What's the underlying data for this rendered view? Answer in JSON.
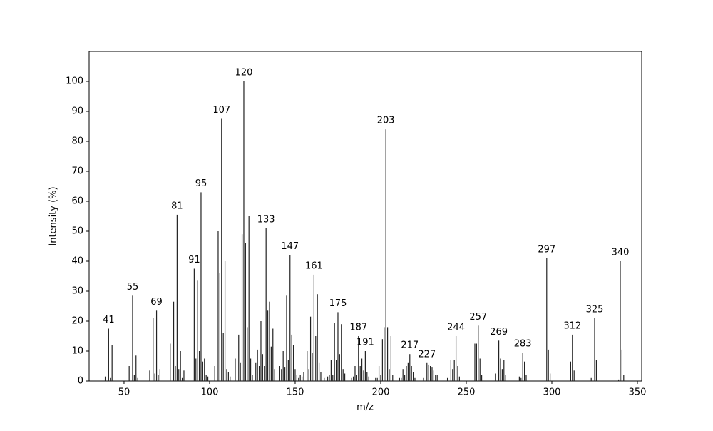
{
  "chart_data": {
    "type": "bar",
    "x_label": "m/z",
    "y_label": "Intensity (%)",
    "x": [
      39,
      41,
      42,
      43,
      53,
      55,
      56,
      57,
      58,
      65,
      67,
      68,
      69,
      70,
      71,
      77,
      79,
      80,
      81,
      82,
      83,
      84,
      85,
      91,
      92,
      93,
      94,
      95,
      96,
      97,
      98,
      99,
      103,
      105,
      106,
      107,
      108,
      109,
      110,
      111,
      112,
      115,
      117,
      118,
      119,
      120,
      121,
      122,
      123,
      124,
      125,
      127,
      128,
      129,
      130,
      131,
      132,
      133,
      134,
      135,
      136,
      137,
      138,
      141,
      142,
      143,
      144,
      145,
      146,
      147,
      148,
      149,
      150,
      151,
      152,
      153,
      154,
      155,
      157,
      158,
      159,
      160,
      161,
      162,
      163,
      164,
      165,
      167,
      169,
      170,
      171,
      172,
      173,
      174,
      175,
      176,
      177,
      178,
      179,
      183,
      184,
      185,
      186,
      187,
      188,
      189,
      190,
      191,
      192,
      193,
      197,
      198,
      199,
      200,
      201,
      202,
      203,
      204,
      205,
      206,
      207,
      211,
      212,
      213,
      214,
      215,
      216,
      217,
      218,
      219,
      220,
      225,
      227,
      228,
      229,
      230,
      231,
      232,
      233,
      239,
      241,
      242,
      243,
      244,
      245,
      246,
      255,
      256,
      257,
      258,
      259,
      267,
      269,
      270,
      271,
      272,
      273,
      281,
      282,
      283,
      284,
      285,
      297,
      298,
      299,
      311,
      312,
      313,
      323,
      325,
      326,
      339,
      340,
      341,
      342
    ],
    "values": [
      1.5,
      17.5,
      1,
      12,
      5,
      28.5,
      2,
      8.5,
      1,
      3.5,
      21,
      2.5,
      23.5,
      2,
      4,
      12.5,
      26.5,
      5,
      55.5,
      4,
      10,
      1,
      3.5,
      37.5,
      7.5,
      33.5,
      10,
      63,
      6.5,
      7.5,
      2,
      1.5,
      5,
      50,
      36,
      87.5,
      16,
      40,
      4,
      3,
      1.5,
      7.5,
      15.5,
      6,
      49,
      100,
      46,
      18,
      55,
      7.5,
      2,
      6,
      10.5,
      5,
      20,
      9,
      5,
      51,
      23.5,
      26.5,
      11.5,
      17.5,
      4,
      5,
      4,
      10,
      4.5,
      28.5,
      7,
      42,
      15.5,
      12,
      4,
      2,
      1,
      2,
      1.5,
      3,
      10,
      4,
      21.5,
      9.5,
      35.5,
      15,
      29,
      6,
      3,
      1,
      1.5,
      2,
      7,
      2,
      19.5,
      7,
      23,
      9,
      19,
      4,
      2.5,
      1,
      1.5,
      5,
      2,
      15,
      5,
      7.5,
      3.5,
      10,
      3,
      1.5,
      1,
      1,
      5,
      2,
      14,
      18,
      84,
      18,
      4,
      15,
      2,
      1,
      1,
      4,
      2,
      5,
      6,
      9,
      5,
      3,
      1,
      1,
      6,
      5.5,
      5,
      4.5,
      3.5,
      2,
      2,
      1,
      7,
      4,
      7,
      15,
      5,
      1.5,
      12.5,
      12.5,
      18.5,
      7.5,
      2,
      2.5,
      13.5,
      7.5,
      4,
      7,
      2,
      1.5,
      1,
      9.5,
      6.5,
      2,
      41,
      10.5,
      2.5,
      6.5,
      15.5,
      3.5,
      1,
      21,
      7,
      0.5,
      40,
      10.5,
      2
    ],
    "peak_labels": [
      41,
      55,
      69,
      81,
      91,
      95,
      107,
      120,
      133,
      147,
      161,
      175,
      187,
      191,
      203,
      217,
      227,
      244,
      257,
      269,
      283,
      297,
      312,
      325,
      340
    ],
    "color": "#222222",
    "xlim": [
      29.6,
      352.5
    ],
    "ylim": [
      0,
      110
    ],
    "xticks": [
      50,
      100,
      150,
      200,
      250,
      300,
      350
    ],
    "yticks": [
      0,
      10,
      20,
      30,
      40,
      50,
      60,
      70,
      80,
      90,
      100
    ]
  }
}
